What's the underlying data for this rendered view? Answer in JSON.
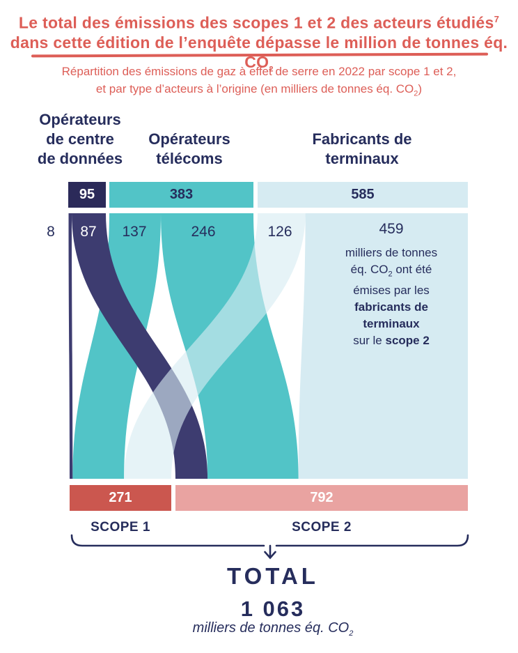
{
  "title": {
    "line1": "Le total des émissions des scopes 1 et 2 des acteurs étudiés",
    "line1_sup": "7",
    "line2_pre": "dans cette édition de l’enquête dépasse le million de tonnes éq. CO",
    "line2_sub": "2"
  },
  "subtitle": {
    "line1": "Répartition des émissions de gaz à effet de serre en 2022 par scope 1 et 2,",
    "line2_pre": "et par type d’acteurs à l’origine (en milliers de tonnes éq. CO",
    "line2_sub": "2",
    "line2_post": ")"
  },
  "columns": [
    {
      "label": "Opérateurs\nde centre\nde données"
    },
    {
      "label": "Opérateurs\ntélécoms"
    },
    {
      "label": "Fabricants de\nterminaux"
    }
  ],
  "chart_data": {
    "type": "sankey",
    "title": "Répartition des émissions de gaz à effet de serre en 2022 par scope 1 et 2, et par type d’acteurs à l’origine",
    "unit": "milliers de tonnes éq. CO2",
    "nodes_top": [
      {
        "name": "Opérateurs de centre de données",
        "value": 95
      },
      {
        "name": "Opérateurs télécoms",
        "value": 383
      },
      {
        "name": "Fabricants de terminaux",
        "value": 585
      }
    ],
    "nodes_bottom": [
      {
        "name": "SCOPE 1",
        "value": 271
      },
      {
        "name": "SCOPE 2",
        "value": 792
      }
    ],
    "flows": [
      {
        "source": "Opérateurs de centre de données",
        "target": "SCOPE 1",
        "value": 8
      },
      {
        "source": "Opérateurs de centre de données",
        "target": "SCOPE 2",
        "value": 87
      },
      {
        "source": "Opérateurs télécoms",
        "target": "SCOPE 1",
        "value": 137
      },
      {
        "source": "Opérateurs télécoms",
        "target": "SCOPE 2",
        "value": 246
      },
      {
        "source": "Fabricants de terminaux",
        "target": "SCOPE 1",
        "value": 126
      },
      {
        "source": "Fabricants de terminaux",
        "target": "SCOPE 2",
        "value": 459
      }
    ],
    "total": 1063
  },
  "annotation": {
    "l1": "milliers de tonnes",
    "l2_pre": "éq. CO",
    "l2_sub": "2",
    "l2_post": " ont été",
    "l3": "émises par les",
    "l4": "fabricants de",
    "l5": "terminaux",
    "l6_pre": "sur le ",
    "l6_bold": "scope 2"
  },
  "total_block": {
    "label": "TOTAL",
    "value": "1 063",
    "unit_pre": "milliers de tonnes éq. CO",
    "unit_sub": "2"
  },
  "colors": {
    "navy": "#262d5c",
    "navy_bar": "#2b2a59",
    "navy_flow": "#3d3c70",
    "teal": "#52c4c7",
    "light_blue": "#d6ebf2",
    "red": "#cb574f",
    "pink": "#e9a3a1",
    "coral": "#dd5e57"
  }
}
